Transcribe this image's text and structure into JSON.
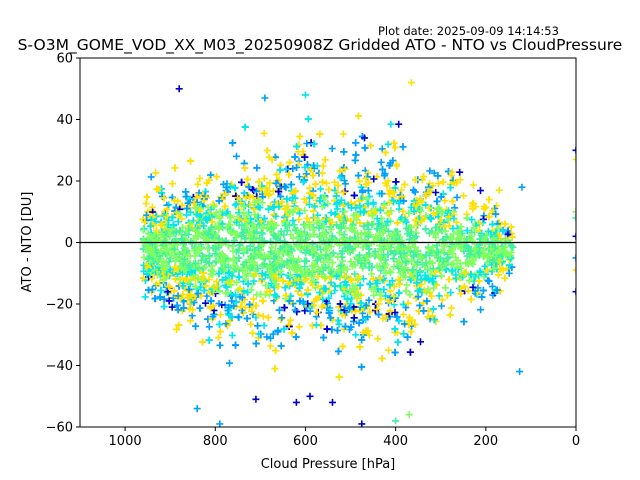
{
  "plot_date": "Plot date: 2025-09-09 14:14:53",
  "chart_data": {
    "type": "scatter",
    "title": "S-O3M_GOME_VOD_XX_M03_20250908Z Gridded ATO - NTO vs CloudPressure",
    "xlabel": "Cloud Pressure [hPa]",
    "ylabel": "ATO - NTO [DU]",
    "xlim": [
      1100,
      0
    ],
    "ylim": [
      -60,
      60
    ],
    "x_inverted": true,
    "xticks": [
      1000,
      800,
      600,
      400,
      200,
      0
    ],
    "yticks": [
      -60,
      -40,
      -20,
      0,
      20,
      40,
      60
    ],
    "xtick_labels": [
      "1000",
      "800",
      "600",
      "400",
      "200",
      "0"
    ],
    "ytick_labels": [
      "−60",
      "−40",
      "−20",
      "0",
      "20",
      "40",
      "60"
    ],
    "marker": "plus",
    "grid": false,
    "legend": "none",
    "reference_line": {
      "y": 0,
      "color": "#000000"
    },
    "colors": [
      "#0000cd",
      "#00a0ff",
      "#00e5ee",
      "#40f0a0",
      "#80ff60",
      "#ffe000"
    ],
    "cloud_envelope": {
      "description_x_range": [
        960,
        140
      ],
      "center_y": -2,
      "x_center": 570,
      "upper_y_at_center": 38,
      "lower_y_at_center": -40
    },
    "outliers": [
      {
        "x": 880,
        "y": 50,
        "c": 0
      },
      {
        "x": 690,
        "y": 47,
        "c": 1
      },
      {
        "x": 600,
        "y": 48,
        "c": 2
      },
      {
        "x": 365,
        "y": 52,
        "c": 5
      },
      {
        "x": 120,
        "y": 18,
        "c": 1
      },
      {
        "x": 170,
        "y": 17,
        "c": 5
      },
      {
        "x": 125,
        "y": -42,
        "c": 1
      },
      {
        "x": 620,
        "y": -52,
        "c": 0
      },
      {
        "x": 590,
        "y": -50,
        "c": 0
      },
      {
        "x": 540,
        "y": -52,
        "c": 0
      },
      {
        "x": 475,
        "y": -59,
        "c": 0
      },
      {
        "x": 840,
        "y": -54,
        "c": 1
      },
      {
        "x": 790,
        "y": -59,
        "c": 1
      },
      {
        "x": 710,
        "y": -51,
        "c": 0
      },
      {
        "x": 370,
        "y": -56,
        "c": 4
      },
      {
        "x": 400,
        "y": -58,
        "c": 3
      },
      {
        "x": 0,
        "y": 30,
        "c": 0
      },
      {
        "x": 0,
        "y": 27,
        "c": 5
      },
      {
        "x": 0,
        "y": 10,
        "c": 4
      },
      {
        "x": 0,
        "y": 8,
        "c": 3
      },
      {
        "x": 0,
        "y": 2,
        "c": 0
      },
      {
        "x": 0,
        "y": -5,
        "c": 1
      },
      {
        "x": 0,
        "y": -9,
        "c": 5
      },
      {
        "x": 0,
        "y": -16,
        "c": 0
      }
    ]
  }
}
